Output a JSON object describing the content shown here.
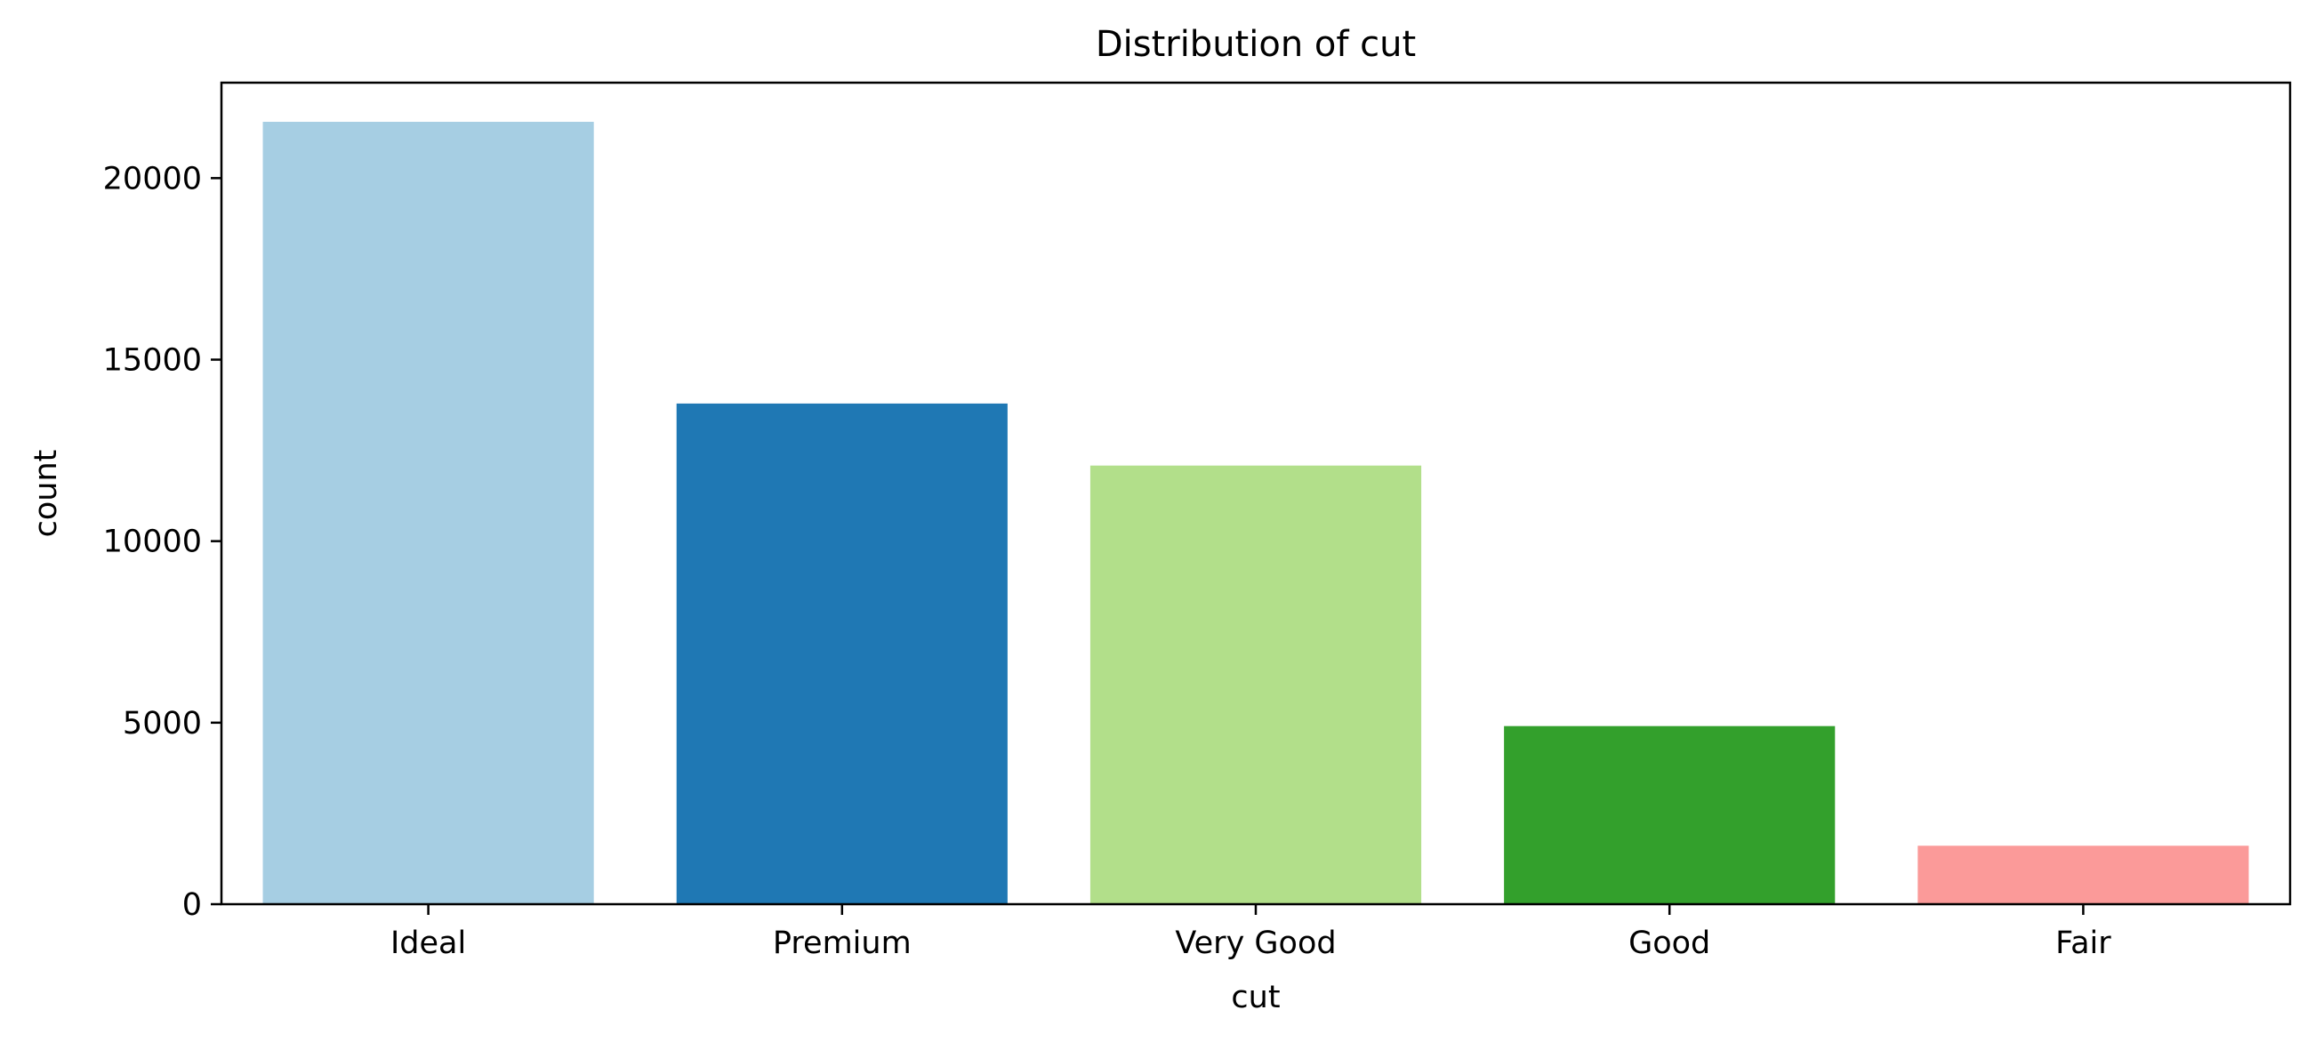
{
  "chart_data": {
    "type": "bar",
    "title": "Distribution of cut",
    "xlabel": "cut",
    "ylabel": "count",
    "categories": [
      "Ideal",
      "Premium",
      "Very Good",
      "Good",
      "Fair"
    ],
    "values": [
      21551,
      13791,
      12082,
      4906,
      1610
    ],
    "colors": [
      "#a6cee3",
      "#1f78b4",
      "#b2df8a",
      "#33a02c",
      "#fb9a99"
    ],
    "yticks": [
      0,
      5000,
      10000,
      15000,
      20000
    ],
    "ytick_labels": [
      "0",
      "5000",
      "10000",
      "15000",
      "20000"
    ],
    "ylim": [
      0,
      22629
    ],
    "grid": false,
    "legend": "none"
  }
}
